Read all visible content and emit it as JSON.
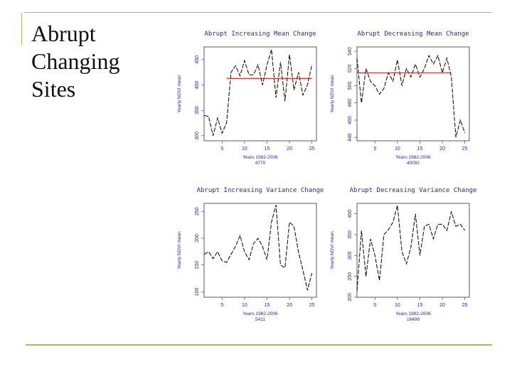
{
  "slide": {
    "title_lines": [
      "Abrupt",
      "Changing",
      "Sites"
    ],
    "accent_color": "#b9b35a"
  },
  "chart_data": [
    {
      "type": "line",
      "title": "Abrupt Increasing Mean Change",
      "ylabel": "Yearly NDVI mean",
      "xlabel": "Years 1982-2006",
      "xsublabel": "4770",
      "xlim": [
        1,
        26
      ],
      "ylim": [
        290,
        475
      ],
      "xticks": [
        5,
        10,
        15,
        20,
        25
      ],
      "yticks": [
        300,
        350,
        400,
        450
      ],
      "x": [
        1,
        2,
        3,
        4,
        5,
        6,
        7,
        8,
        9,
        10,
        11,
        12,
        13,
        14,
        15,
        16,
        17,
        18,
        19,
        20,
        21,
        22,
        23,
        24,
        25
      ],
      "series": [
        {
          "values": [
            340,
            338,
            300,
            335,
            305,
            325,
            425,
            438,
            418,
            448,
            420,
            420,
            440,
            400,
            440,
            470,
            375,
            445,
            368,
            460,
            390,
            425,
            380,
            400,
            440
          ],
          "color": "#000000",
          "dash": true
        }
      ],
      "segments": [
        {
          "x0": 6,
          "x1": 25,
          "y": 413,
          "color": "#cc2b2b"
        }
      ]
    },
    {
      "type": "line",
      "title": "Abrupt Decreasing Mean Change",
      "ylabel": "Yearly NDVI mean",
      "xlabel": "Years 1982-2006",
      "xsublabel": "40092",
      "xlim": [
        1,
        26
      ],
      "ylim": [
        436,
        545
      ],
      "xticks": [
        5,
        10,
        15,
        20,
        25
      ],
      "yticks": [
        440,
        460,
        480,
        500,
        520,
        540
      ],
      "x": [
        1,
        2,
        3,
        4,
        5,
        6,
        7,
        8,
        9,
        10,
        11,
        12,
        13,
        14,
        15,
        16,
        17,
        18,
        19,
        20,
        21,
        22,
        23,
        24,
        25
      ],
      "series": [
        {
          "values": [
            532,
            480,
            520,
            505,
            500,
            490,
            497,
            515,
            505,
            530,
            500,
            520,
            510,
            525,
            510,
            520,
            535,
            525,
            535,
            515,
            532,
            510,
            440,
            460,
            445
          ],
          "color": "#000000",
          "dash": true
        }
      ],
      "segments": [
        {
          "x0": 1,
          "x1": 22,
          "y": 515,
          "color": "#cc2b2b"
        }
      ]
    },
    {
      "type": "line",
      "title": "Abrupt Increasing Variance Change",
      "ylabel": "Yearly NDVI mean",
      "xlabel": "Years 1982-2006",
      "xsublabel": "5411",
      "xlim": [
        1,
        26
      ],
      "ylim": [
        90,
        265
      ],
      "xticks": [
        5,
        10,
        15,
        20,
        25
      ],
      "yticks": [
        100,
        150,
        200,
        250
      ],
      "x": [
        1,
        2,
        3,
        4,
        5,
        6,
        7,
        8,
        9,
        10,
        11,
        12,
        13,
        14,
        15,
        16,
        17,
        18,
        19,
        20,
        21,
        22,
        23,
        24,
        25
      ],
      "series": [
        {
          "values": [
            170,
            175,
            162,
            175,
            158,
            155,
            170,
            185,
            205,
            175,
            160,
            190,
            200,
            185,
            160,
            230,
            262,
            150,
            145,
            230,
            222,
            175,
            140,
            103,
            135
          ],
          "color": "#000000",
          "dash": true
        }
      ],
      "segments": []
    },
    {
      "type": "line",
      "title": "Abrupt Decreasing Variance Change",
      "ylabel": "Yearly NDVI mean",
      "xlabel": "Years 1982-2006",
      "xsublabel": "16498",
      "xlim": [
        1,
        26
      ],
      "ylim": [
        200,
        425
      ],
      "xticks": [
        5,
        10,
        15,
        20,
        25
      ],
      "yticks": [
        200,
        250,
        300,
        350,
        400
      ],
      "x": [
        1,
        2,
        3,
        4,
        5,
        6,
        7,
        8,
        9,
        10,
        11,
        12,
        13,
        14,
        15,
        16,
        17,
        18,
        19,
        20,
        21,
        22,
        23,
        24,
        25
      ],
      "series": [
        {
          "values": [
            215,
            360,
            250,
            340,
            300,
            240,
            350,
            362,
            380,
            420,
            310,
            280,
            320,
            400,
            300,
            370,
            375,
            340,
            375,
            375,
            360,
            405,
            370,
            375,
            360
          ],
          "color": "#000000",
          "dash": true
        }
      ],
      "segments": []
    }
  ]
}
